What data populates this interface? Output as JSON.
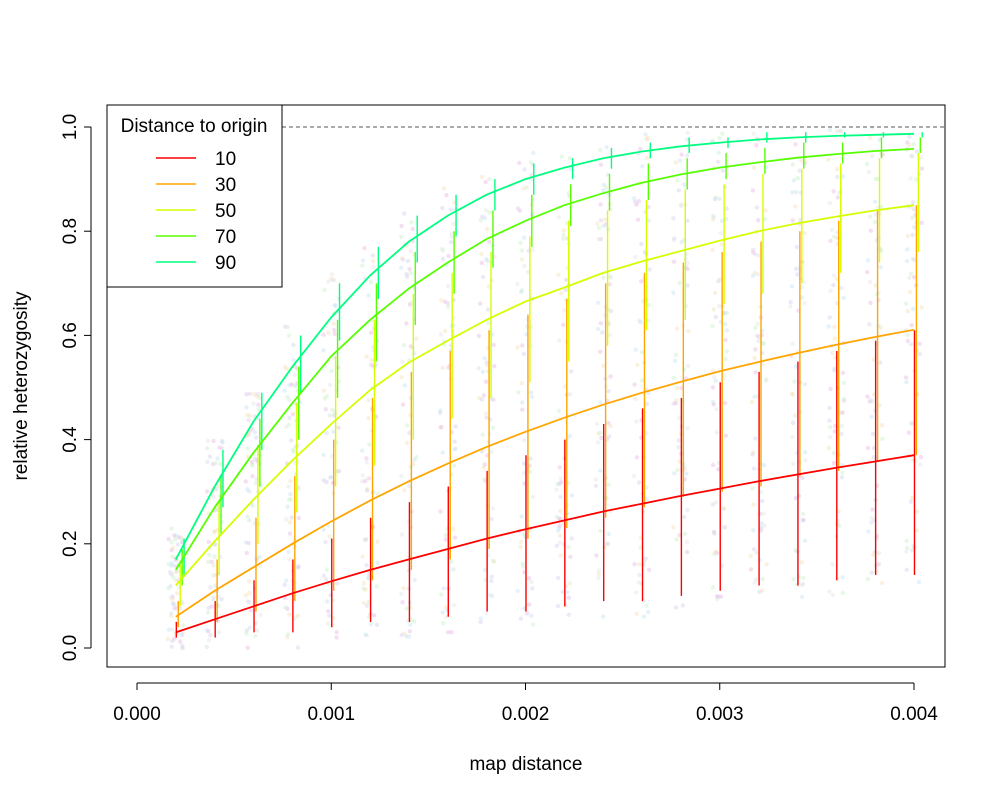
{
  "chart_data": {
    "type": "line",
    "title": "",
    "xlabel": "map distance",
    "ylabel": "relative heterozygosity",
    "xlim": [
      0,
      0.004
    ],
    "ylim": [
      0,
      1
    ],
    "x_ticks": [
      "0.000",
      "0.001",
      "0.002",
      "0.003",
      "0.004"
    ],
    "y_ticks": [
      "0.0",
      "0.2",
      "0.4",
      "0.6",
      "0.8",
      "1.0"
    ],
    "reference_line": {
      "y": 1.0,
      "style": "dashed",
      "color": "#777777"
    },
    "grid": false,
    "legend": {
      "title": "Distance to origin",
      "placement": "top-left"
    },
    "x": [
      0.0002,
      0.0004,
      0.0006,
      0.0008,
      0.001,
      0.0012,
      0.0014,
      0.0016,
      0.0018,
      0.002,
      0.0022,
      0.0024,
      0.0026,
      0.0028,
      0.003,
      0.0032,
      0.0034,
      0.0036,
      0.0038,
      0.004
    ],
    "series": [
      {
        "name": "10",
        "color": "#ff0000",
        "values": [
          0.03,
          0.055,
          0.08,
          0.105,
          0.128,
          0.15,
          0.17,
          0.19,
          0.21,
          0.228,
          0.245,
          0.262,
          0.277,
          0.292,
          0.306,
          0.32,
          0.333,
          0.346,
          0.358,
          0.37
        ],
        "ranges": [
          [
            0.02,
            0.05
          ],
          [
            0.02,
            0.09
          ],
          [
            0.03,
            0.13
          ],
          [
            0.03,
            0.17
          ],
          [
            0.04,
            0.21
          ],
          [
            0.05,
            0.25
          ],
          [
            0.05,
            0.28
          ],
          [
            0.06,
            0.31
          ],
          [
            0.07,
            0.34
          ],
          [
            0.07,
            0.37
          ],
          [
            0.08,
            0.4
          ],
          [
            0.09,
            0.43
          ],
          [
            0.09,
            0.46
          ],
          [
            0.1,
            0.48
          ],
          [
            0.11,
            0.51
          ],
          [
            0.12,
            0.53
          ],
          [
            0.12,
            0.55
          ],
          [
            0.13,
            0.57
          ],
          [
            0.14,
            0.59
          ],
          [
            0.14,
            0.61
          ]
        ]
      },
      {
        "name": "30",
        "color": "#ffa500",
        "values": [
          0.06,
          0.11,
          0.155,
          0.2,
          0.243,
          0.283,
          0.32,
          0.354,
          0.386,
          0.415,
          0.442,
          0.467,
          0.49,
          0.511,
          0.531,
          0.549,
          0.566,
          0.582,
          0.597,
          0.611
        ],
        "ranges": [
          [
            0.04,
            0.09
          ],
          [
            0.05,
            0.17
          ],
          [
            0.07,
            0.25
          ],
          [
            0.09,
            0.33
          ],
          [
            0.11,
            0.4
          ],
          [
            0.13,
            0.48
          ],
          [
            0.15,
            0.53
          ],
          [
            0.17,
            0.57
          ],
          [
            0.19,
            0.61
          ],
          [
            0.21,
            0.64
          ],
          [
            0.23,
            0.67
          ],
          [
            0.25,
            0.7
          ],
          [
            0.27,
            0.72
          ],
          [
            0.29,
            0.74
          ],
          [
            0.3,
            0.76
          ],
          [
            0.31,
            0.78
          ],
          [
            0.33,
            0.8
          ],
          [
            0.34,
            0.82
          ],
          [
            0.36,
            0.84
          ],
          [
            0.37,
            0.85
          ]
        ]
      },
      {
        "name": "50",
        "color": "#d4ff00",
        "values": [
          0.12,
          0.205,
          0.285,
          0.36,
          0.43,
          0.495,
          0.548,
          0.59,
          0.63,
          0.665,
          0.692,
          0.72,
          0.742,
          0.762,
          0.782,
          0.8,
          0.815,
          0.828,
          0.84,
          0.85
        ],
        "ranges": [
          [
            0.08,
            0.16
          ],
          [
            0.14,
            0.28
          ],
          [
            0.2,
            0.39
          ],
          [
            0.26,
            0.47
          ],
          [
            0.31,
            0.56
          ],
          [
            0.35,
            0.63
          ],
          [
            0.4,
            0.68
          ],
          [
            0.44,
            0.72
          ],
          [
            0.48,
            0.76
          ],
          [
            0.51,
            0.79
          ],
          [
            0.55,
            0.82
          ],
          [
            0.58,
            0.84
          ],
          [
            0.61,
            0.86
          ],
          [
            0.63,
            0.88
          ],
          [
            0.66,
            0.89
          ],
          [
            0.68,
            0.91
          ],
          [
            0.7,
            0.92
          ],
          [
            0.72,
            0.93
          ],
          [
            0.74,
            0.94
          ],
          [
            0.76,
            0.95
          ]
        ]
      },
      {
        "name": "70",
        "color": "#55ff00",
        "values": [
          0.15,
          0.27,
          0.375,
          0.47,
          0.56,
          0.63,
          0.69,
          0.74,
          0.785,
          0.82,
          0.85,
          0.873,
          0.893,
          0.909,
          0.922,
          0.932,
          0.941,
          0.948,
          0.954,
          0.958
        ],
        "ranges": [
          [
            0.12,
            0.19
          ],
          [
            0.22,
            0.33
          ],
          [
            0.31,
            0.44
          ],
          [
            0.4,
            0.54
          ],
          [
            0.48,
            0.63
          ],
          [
            0.55,
            0.7
          ],
          [
            0.62,
            0.76
          ],
          [
            0.68,
            0.8
          ],
          [
            0.73,
            0.84
          ],
          [
            0.77,
            0.87
          ],
          [
            0.81,
            0.89
          ],
          [
            0.84,
            0.91
          ],
          [
            0.86,
            0.93
          ],
          [
            0.88,
            0.94
          ],
          [
            0.9,
            0.95
          ],
          [
            0.91,
            0.96
          ],
          [
            0.92,
            0.97
          ],
          [
            0.93,
            0.97
          ],
          [
            0.94,
            0.98
          ],
          [
            0.95,
            0.98
          ]
        ]
      },
      {
        "name": "90",
        "color": "#00ff80",
        "values": [
          0.17,
          0.31,
          0.435,
          0.54,
          0.635,
          0.715,
          0.78,
          0.83,
          0.87,
          0.9,
          0.922,
          0.94,
          0.953,
          0.963,
          0.97,
          0.976,
          0.98,
          0.983,
          0.985,
          0.987
        ],
        "ranges": [
          [
            0.14,
            0.21
          ],
          [
            0.27,
            0.38
          ],
          [
            0.38,
            0.49
          ],
          [
            0.49,
            0.6
          ],
          [
            0.59,
            0.7
          ],
          [
            0.67,
            0.77
          ],
          [
            0.74,
            0.83
          ],
          [
            0.79,
            0.87
          ],
          [
            0.84,
            0.9
          ],
          [
            0.87,
            0.93
          ],
          [
            0.9,
            0.94
          ],
          [
            0.92,
            0.96
          ],
          [
            0.94,
            0.97
          ],
          [
            0.95,
            0.98
          ],
          [
            0.96,
            0.98
          ],
          [
            0.97,
            0.99
          ],
          [
            0.97,
            0.99
          ],
          [
            0.98,
            0.99
          ],
          [
            0.98,
            0.99
          ],
          [
            0.98,
            0.99
          ]
        ]
      }
    ]
  }
}
